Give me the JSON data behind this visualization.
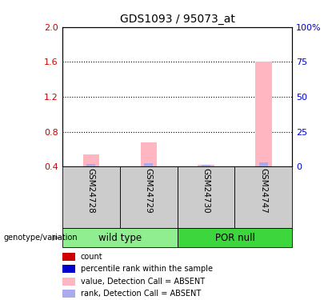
{
  "title": "GDS1093 / 95073_at",
  "samples": [
    "GSM24728",
    "GSM24729",
    "GSM24730",
    "GSM24747"
  ],
  "groups": [
    {
      "name": "wild type",
      "color": "#90EE90"
    },
    {
      "name": "POR null",
      "color": "#3DD63D"
    }
  ],
  "group_sample_counts": [
    2,
    2
  ],
  "pink_bar_values": [
    0.54,
    0.68,
    0.415,
    1.6
  ],
  "blue_bar_values": [
    0.432,
    0.442,
    0.415,
    0.445
  ],
  "bar_bottom": 0.4,
  "ylim": [
    0.4,
    2.0
  ],
  "y_ticks_left": [
    0.4,
    0.8,
    1.2,
    1.6,
    2.0
  ],
  "y_ticks_right": [
    0,
    25,
    50,
    75,
    100
  ],
  "y_labels_right": [
    "0",
    "25",
    "50",
    "75",
    "100%"
  ],
  "left_color": "#CC0000",
  "right_color": "#0000CC",
  "bar_pink_color": "#FFB6C1",
  "bar_blue_color": "#AAAAEE",
  "sample_box_color": "#CCCCCC",
  "grid_lines": [
    0.8,
    1.2,
    1.6
  ],
  "legend_items": [
    {
      "color": "#CC0000",
      "label": "count"
    },
    {
      "color": "#0000CC",
      "label": "percentile rank within the sample"
    },
    {
      "color": "#FFB6C1",
      "label": "value, Detection Call = ABSENT"
    },
    {
      "color": "#AAAAEE",
      "label": "rank, Detection Call = ABSENT"
    }
  ],
  "genotype_label": "genotype/variation"
}
